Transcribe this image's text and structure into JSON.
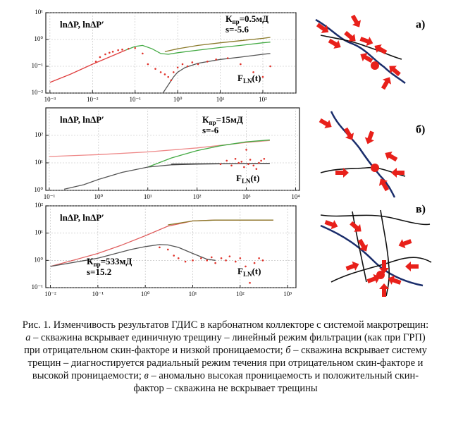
{
  "chart_data": [
    {
      "type": "line",
      "log_x": true,
      "log_y": true,
      "xlim": [
        0.0008,
        600
      ],
      "ylim": [
        0.01,
        10
      ],
      "xticks": [
        {
          "value": 0.001,
          "label": "10⁻³"
        },
        {
          "value": 0.01,
          "label": "10⁻²"
        },
        {
          "value": 0.1,
          "label": "10⁻¹"
        },
        {
          "value": 1,
          "label": "10⁰"
        },
        {
          "value": 10,
          "label": "10¹"
        },
        {
          "value": 100,
          "label": "10²"
        }
      ],
      "yticks": [
        {
          "value": 0.01,
          "label": "10⁻²"
        },
        {
          "value": 0.1,
          "label": "10⁻¹"
        },
        {
          "value": 1,
          "label": "10⁰"
        },
        {
          "value": 10,
          "label": "10¹"
        }
      ],
      "grid": true,
      "y_label": "lnΔP, lnΔP′",
      "curve_label": {
        "base": "F",
        "sub": "LN",
        "rest": "(t)"
      },
      "perm": {
        "base": "К",
        "sub": "пр",
        "rest": "=0.5мД"
      },
      "skin": "s=-5.6",
      "panel": "а)",
      "series": [
        {
          "type": "line",
          "color": "#e04040",
          "x": [
            0.001,
            0.003,
            0.01,
            0.03,
            0.06
          ],
          "values": [
            0.025,
            0.05,
            0.12,
            0.25,
            0.4
          ]
        },
        {
          "type": "line",
          "color": "#44aa44",
          "x": [
            0.06,
            0.1,
            0.15,
            0.25,
            0.4,
            0.6,
            1,
            3,
            10,
            30,
            100,
            150
          ],
          "values": [
            0.4,
            0.55,
            0.6,
            0.45,
            0.3,
            0.28,
            0.32,
            0.4,
            0.5,
            0.6,
            0.75,
            0.8
          ]
        },
        {
          "type": "line",
          "color": "#8a7a2a",
          "x": [
            0.5,
            1,
            3,
            10,
            30,
            100,
            150
          ],
          "values": [
            0.35,
            0.45,
            0.6,
            0.75,
            0.9,
            1.1,
            1.2
          ]
        },
        {
          "type": "line",
          "color": "#555555",
          "x": [
            0.45,
            0.6,
            0.8,
            1,
            1.5,
            3,
            10,
            30,
            100,
            150
          ],
          "values": [
            0.01,
            0.02,
            0.04,
            0.06,
            0.09,
            0.13,
            0.18,
            0.22,
            0.28,
            0.3
          ]
        },
        {
          "type": "scatter",
          "color": "#e0332b",
          "x": [
            0.012,
            0.015,
            0.02,
            0.025,
            0.03,
            0.04,
            0.05,
            0.07,
            0.1,
            0.15,
            0.2,
            0.3,
            0.4,
            0.5,
            0.6,
            0.7,
            0.8,
            1,
            1.3,
            1.7,
            2.2,
            3,
            5,
            8,
            15,
            30,
            60,
            100,
            150
          ],
          "values": [
            0.15,
            0.22,
            0.28,
            0.32,
            0.35,
            0.4,
            0.42,
            0.45,
            0.48,
            0.3,
            0.12,
            0.08,
            0.06,
            0.05,
            0.04,
            0.03,
            0.06,
            0.09,
            0.12,
            0.1,
            0.14,
            0.12,
            0.15,
            0.18,
            0.2,
            0.12,
            0.06,
            0.04,
            0.1
          ]
        }
      ]
    },
    {
      "type": "line",
      "log_x": true,
      "log_y": true,
      "xlim": [
        0.085,
        12000
      ],
      "ylim": [
        1,
        1000
      ],
      "xticks": [
        {
          "value": 0.1,
          "label": "10⁻¹"
        },
        {
          "value": 1,
          "label": "10⁰"
        },
        {
          "value": 10,
          "label": "10¹"
        },
        {
          "value": 100,
          "label": "10²"
        },
        {
          "value": 1000,
          "label": "10³"
        },
        {
          "value": 10000,
          "label": "10⁴"
        }
      ],
      "yticks": [
        {
          "value": 1,
          "label": "10⁰"
        },
        {
          "value": 10,
          "label": "10¹"
        },
        {
          "value": 100,
          "label": "10²"
        }
      ],
      "grid": true,
      "y_label": "lnΔP, lnΔP′",
      "curve_label": {
        "base": "F",
        "sub": "LN",
        "rest": "(t)"
      },
      "perm": {
        "base": "К",
        "sub": "пр",
        "rest": "=15мД"
      },
      "skin": "s=-6",
      "panel": "б)",
      "series": [
        {
          "type": "line",
          "color": "#ee8888",
          "x": [
            0.1,
            1,
            10,
            100,
            1000,
            3000
          ],
          "values": [
            17,
            20,
            25,
            35,
            55,
            65
          ]
        },
        {
          "type": "line",
          "color": "#44aa44",
          "x": [
            10,
            30,
            100,
            300,
            1000,
            3000
          ],
          "values": [
            7,
            15,
            28,
            42,
            58,
            68
          ]
        },
        {
          "type": "line",
          "color": "#555555",
          "x": [
            0.2,
            0.5,
            1,
            3,
            10,
            30,
            100,
            300
          ],
          "values": [
            1.1,
            1.6,
            2.5,
            4.5,
            7,
            8.5,
            9,
            9.2
          ]
        },
        {
          "type": "line",
          "color": "#333333",
          "x": [
            30,
            100,
            1000,
            3000
          ],
          "values": [
            9,
            9.2,
            9.5,
            9.6
          ]
        },
        {
          "type": "scatter",
          "color": "#e0332b",
          "x": [
            300,
            400,
            500,
            600,
            700,
            800,
            900,
            1000,
            1100,
            1200,
            1400,
            1600,
            1800,
            2000,
            2300
          ],
          "values": [
            9,
            12,
            8,
            14,
            10,
            11,
            7,
            30,
            9,
            13,
            8,
            6,
            10,
            12,
            14
          ]
        }
      ]
    },
    {
      "type": "line",
      "log_x": true,
      "log_y": true,
      "xlim": [
        0.008,
        1500
      ],
      "ylim": [
        0.1,
        100
      ],
      "xticks": [
        {
          "value": 0.01,
          "label": "10⁻²"
        },
        {
          "value": 0.1,
          "label": "10⁻¹"
        },
        {
          "value": 1,
          "label": "10⁰"
        },
        {
          "value": 10,
          "label": "10¹"
        },
        {
          "value": 100,
          "label": "10²"
        },
        {
          "value": 1000,
          "label": "10³"
        }
      ],
      "yticks": [
        {
          "value": 0.1,
          "label": "10⁻¹"
        },
        {
          "value": 1,
          "label": "10⁰"
        },
        {
          "value": 10,
          "label": "10¹"
        },
        {
          "value": 100,
          "label": "10²"
        }
      ],
      "grid": true,
      "y_label": "lnΔP, lnΔP′",
      "curve_label": {
        "base": "F",
        "sub": "LN",
        "rest": "(t)"
      },
      "perm": {
        "base": "К",
        "sub": "пр",
        "rest": "=533мД"
      },
      "skin": "s=15.2",
      "panel": "в)",
      "series": [
        {
          "type": "line",
          "color": "#e06060",
          "x": [
            0.01,
            0.03,
            0.1,
            0.3,
            1,
            3,
            10,
            30,
            100,
            500
          ],
          "values": [
            0.6,
            1,
            1.8,
            3.5,
            8,
            18,
            28,
            30,
            30,
            30
          ]
        },
        {
          "type": "line",
          "color": "#8a7a2a",
          "x": [
            3,
            10,
            30,
            100,
            500
          ],
          "values": [
            20,
            28,
            30,
            30,
            30
          ]
        },
        {
          "type": "line",
          "color": "#555555",
          "x": [
            0.01,
            0.1,
            0.5,
            1,
            2,
            3,
            5,
            10,
            20,
            30
          ],
          "values": [
            0.6,
            1.2,
            2.5,
            3.2,
            3.8,
            3.7,
            3,
            1.8,
            1.1,
            1
          ]
        },
        {
          "type": "scatter",
          "color": "#e0332b",
          "x": [
            2,
            3,
            4,
            5,
            7,
            10,
            15,
            20,
            25,
            30,
            40,
            50,
            60,
            80,
            100,
            130,
            160,
            200,
            250,
            300
          ],
          "values": [
            3,
            2.5,
            1.5,
            1.2,
            0.9,
            1,
            1.2,
            1,
            1.3,
            0.8,
            1.2,
            1,
            1.4,
            0.9,
            1.2,
            0.6,
            0.15,
            0.8,
            1.2,
            1
          ]
        }
      ]
    }
  ],
  "caption": [
    "Рис. 1. Изменчивость результатов ГДИС в карбонатном коллекторе с системой макротрещин: ",
    "а",
    " – скважина вскрывает единичную трещину – линейный режим фильтрации (как при ГРП) при отрицательном скин-факторе и низкой проницаемости; ",
    "б",
    " – скважина вскрывает систему трещин – диагностируется радиальный режим течения при отрицательном скин-факторе и высокой проницаемости; ",
    "в",
    " – аномально высокая проницаемость и положительный скин-фактор – скважина не вскрывает трещины"
  ]
}
